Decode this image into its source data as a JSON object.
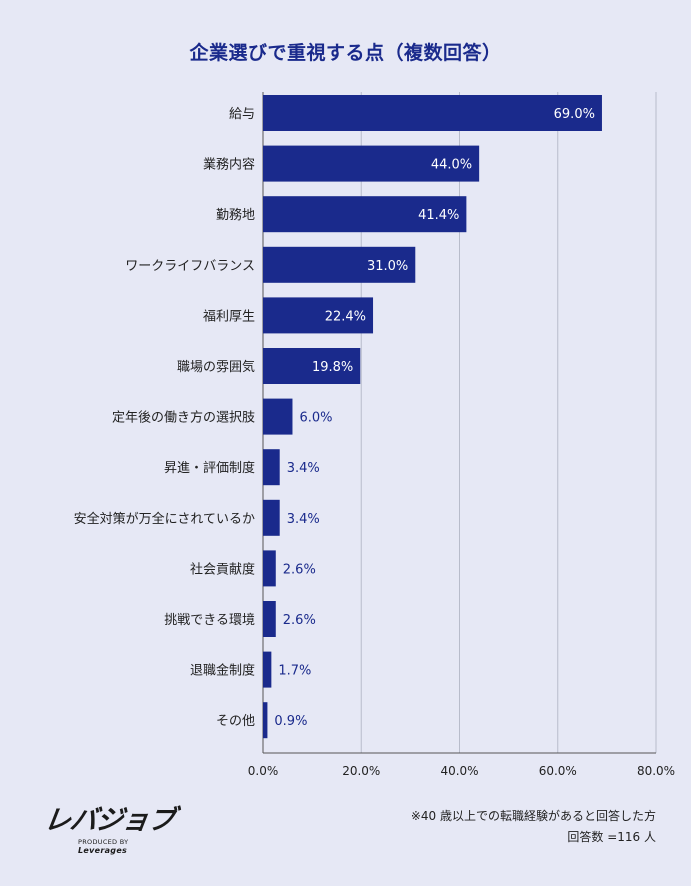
{
  "title": "企業選びで重視する点（複数回答）",
  "colors": {
    "bar": "#1a2a8c",
    "background": "#e6e8f5",
    "grid": "#b8bccb",
    "label_inside": "#ffffff",
    "label_outside": "#1a2a8c"
  },
  "chart_data": {
    "type": "bar",
    "orientation": "horizontal",
    "title": "企業選びで重視する点（複数回答）",
    "categories": [
      "給与",
      "業務内容",
      "勤務地",
      "ワークライフバランス",
      "福利厚生",
      "職場の雰囲気",
      "定年後の働き方の選択肢",
      "昇進・評価制度",
      "安全対策が万全にされているか",
      "社会貢献度",
      "挑戦できる環境",
      "退職金制度",
      "その他"
    ],
    "values": [
      69.0,
      44.0,
      41.4,
      31.0,
      22.4,
      19.8,
      6.0,
      3.4,
      3.4,
      2.6,
      2.6,
      1.7,
      0.9
    ],
    "value_labels": [
      "69.0%",
      "44.0%",
      "41.4%",
      "31.0%",
      "22.4%",
      "19.8%",
      "6.0%",
      "3.4%",
      "3.4%",
      "2.6%",
      "2.6%",
      "1.7%",
      "0.9%"
    ],
    "xlim": [
      0,
      80
    ],
    "xticks": [
      0,
      20,
      40,
      60,
      80
    ],
    "xtick_labels": [
      "0.0%",
      "20.0%",
      "40.0%",
      "60.0%",
      "80.0%"
    ],
    "grid": true
  },
  "logo": {
    "main": "レバジョブ",
    "sub_prefix": "PRODUCED BY",
    "sub_brand": "Leverages"
  },
  "notes": [
    "※40 歳以上での転職経験があると回答した方",
    "回答数 =116 人"
  ]
}
